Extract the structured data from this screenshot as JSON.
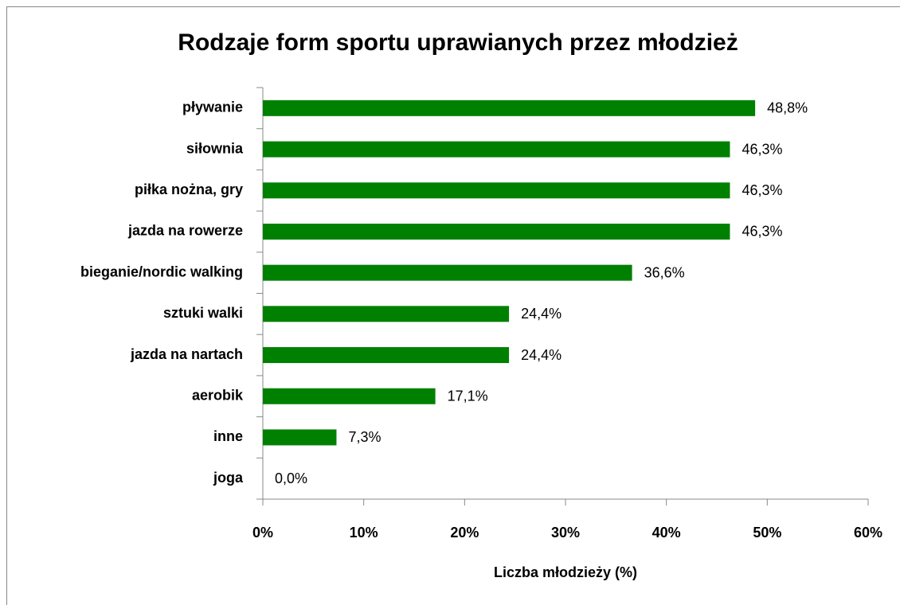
{
  "chart_data": {
    "type": "bar",
    "orientation": "horizontal",
    "title": "Rodzaje form sportu uprawianych przez młodzież",
    "xlabel": "Liczba młodzieży (%)",
    "categories": [
      "pływanie",
      "siłownia",
      "piłka nożna, gry",
      "jazda na rowerze",
      "bieganie/nordic walking",
      "sztuki walki",
      "jazda na nartach",
      "aerobik",
      "inne",
      "joga"
    ],
    "values": [
      48.8,
      46.3,
      46.3,
      46.3,
      36.6,
      24.4,
      24.4,
      17.1,
      7.3,
      0.0
    ],
    "value_labels": [
      "48,8%",
      "46,3%",
      "46,3%",
      "46,3%",
      "36,6%",
      "24,4%",
      "24,4%",
      "17,1%",
      "7,3%",
      "0,0%"
    ],
    "color": "#008000",
    "xlim": [
      0,
      60
    ],
    "xticks": [
      {
        "value": 0,
        "label": "0%"
      },
      {
        "value": 10,
        "label": "10%"
      },
      {
        "value": 20,
        "label": "20%"
      },
      {
        "value": 30,
        "label": "30%"
      },
      {
        "value": 40,
        "label": "40%"
      },
      {
        "value": 50,
        "label": "50%"
      },
      {
        "value": 60,
        "label": "60%"
      }
    ],
    "grid": false
  }
}
